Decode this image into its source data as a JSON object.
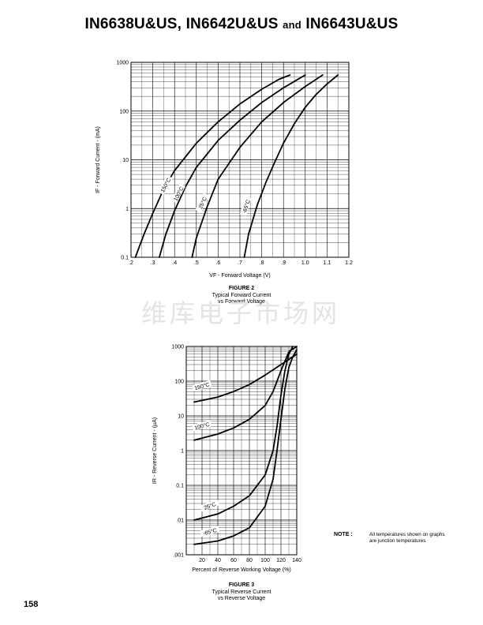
{
  "page": {
    "title_part1": "IN6638U&US, IN6642U&US",
    "title_and": "and",
    "title_part2": "IN6643U&US",
    "page_number": "158",
    "watermark": "维库电子市场网",
    "note_label": "NOTE :",
    "note_text": "All temperatures shown on graphs are junction temperatures"
  },
  "figure2": {
    "caption_title": "FIGURE 2",
    "caption_line1": "Typical Forward Current",
    "caption_line2": "vs Forward Voltage"
  },
  "figure3": {
    "caption_title": "FIGURE 3",
    "caption_line1": "Typical Reverse Current",
    "caption_line2": "vs Reverse Voltage"
  },
  "chart_data": [
    {
      "type": "line",
      "xlabel": "VF - Forward Voltage (V)",
      "ylabel": "IF - Forward Current - (mA)",
      "xlim": [
        0.2,
        1.2
      ],
      "ylim": [
        0.1,
        1000
      ],
      "yscale": "log",
      "grid": true,
      "xticks": [
        ".2",
        ".3",
        ".4",
        ".5",
        ".6",
        ".7",
        ".8",
        ".9",
        "1.0",
        "1.1",
        "1.2"
      ],
      "yticks": [
        "0.1",
        "1",
        "10",
        "100",
        "1000"
      ],
      "series": [
        {
          "name": "150°C",
          "x": [
            0.22,
            0.26,
            0.3,
            0.35,
            0.4,
            0.5,
            0.6,
            0.7,
            0.8,
            0.88,
            0.93
          ],
          "y": [
            0.1,
            0.3,
            0.8,
            2.5,
            6,
            22,
            60,
            140,
            280,
            450,
            550
          ]
        },
        {
          "name": "100°C",
          "x": [
            0.33,
            0.36,
            0.4,
            0.45,
            0.5,
            0.6,
            0.7,
            0.8,
            0.9,
            1.0
          ],
          "y": [
            0.1,
            0.3,
            0.9,
            2.8,
            7,
            25,
            65,
            150,
            300,
            550
          ]
        },
        {
          "name": "25°C",
          "x": [
            0.48,
            0.5,
            0.55,
            0.6,
            0.7,
            0.8,
            0.9,
            1.0,
            1.08
          ],
          "y": [
            0.1,
            0.25,
            1.1,
            4,
            18,
            60,
            150,
            320,
            550
          ]
        },
        {
          "name": "-65°C",
          "x": [
            0.72,
            0.74,
            0.78,
            0.82,
            0.86,
            0.9,
            0.95,
            1.0,
            1.05,
            1.1,
            1.15
          ],
          "y": [
            0.1,
            0.3,
            1.2,
            3.5,
            9,
            22,
            55,
            120,
            220,
            360,
            550
          ]
        }
      ],
      "curve_labels": [
        "150°C",
        "100°C",
        "25°C",
        "-65°C"
      ]
    },
    {
      "type": "line",
      "xlabel": "Percent of Reverse Working Voltage (%)",
      "ylabel": "IR - Reverse Current - (µA)",
      "xlim": [
        0,
        140
      ],
      "ylim": [
        0.001,
        1000
      ],
      "yscale": "log",
      "grid": true,
      "xticks": [
        "20",
        "40",
        "60",
        "80",
        "100",
        "120",
        "140"
      ],
      "yticks": [
        ".001",
        ".01",
        "0.1",
        "1",
        "10",
        "100",
        "1000"
      ],
      "series": [
        {
          "name": "150°C",
          "x": [
            10,
            40,
            60,
            80,
            100,
            120,
            140
          ],
          "y": [
            25,
            35,
            50,
            80,
            150,
            300,
            600
          ]
        },
        {
          "name": "100°C",
          "x": [
            10,
            40,
            60,
            80,
            100,
            110,
            120,
            130,
            140
          ],
          "y": [
            2,
            3,
            4.5,
            8,
            20,
            50,
            200,
            700,
            1000
          ]
        },
        {
          "name": "25°C",
          "x": [
            10,
            40,
            60,
            80,
            100,
            110,
            115,
            120,
            125,
            130,
            135
          ],
          "y": [
            0.01,
            0.015,
            0.025,
            0.05,
            0.2,
            1,
            5,
            40,
            200,
            600,
            1000
          ]
        },
        {
          "name": "-65°C",
          "x": [
            10,
            40,
            60,
            80,
            100,
            110,
            115,
            120,
            125,
            130,
            135,
            140
          ],
          "y": [
            0.002,
            0.0025,
            0.0035,
            0.006,
            0.025,
            0.15,
            1,
            8,
            60,
            250,
            500,
            800
          ]
        }
      ],
      "curve_labels": [
        "150°C",
        "100°C",
        "25°C",
        "-65°C"
      ]
    }
  ]
}
